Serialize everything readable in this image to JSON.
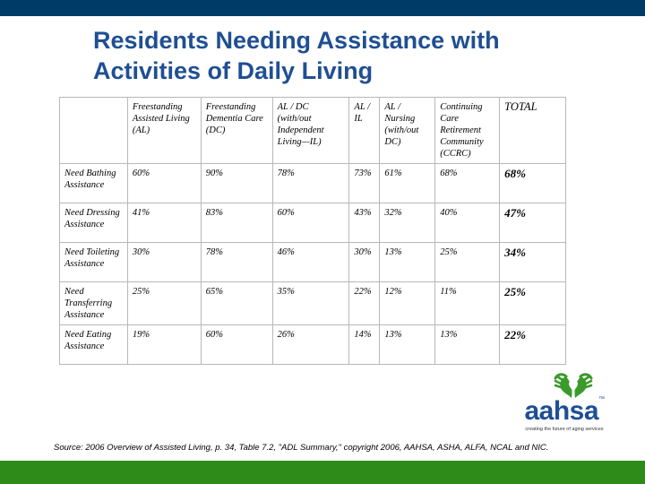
{
  "title": "Residents Needing Assistance with Activities of Daily Living",
  "table": {
    "headers": [
      "",
      "Freestanding Assisted Living (AL)",
      "Freestanding Dementia Care (DC)",
      "AL / DC (with/out Independent Living—IL)",
      "AL / IL",
      "AL / Nursing (with/out DC)",
      "Continuing Care Retirement Community (CCRC)",
      "TOTAL"
    ],
    "rows": [
      {
        "label": "Need Bathing Assistance",
        "cells": [
          "60%",
          "90%",
          "78%",
          "73%",
          "61%",
          "68%",
          "68%"
        ]
      },
      {
        "label": "Need Dressing Assistance",
        "cells": [
          "41%",
          "83%",
          "60%",
          "43%",
          "32%",
          "40%",
          "47%"
        ]
      },
      {
        "label": "Need Toileting Assistance",
        "cells": [
          "30%",
          "78%",
          "46%",
          "30%",
          "13%",
          "25%",
          "34%"
        ]
      },
      {
        "label": "Need Transferring Assistance",
        "cells": [
          "25%",
          "65%",
          "35%",
          "22%",
          "12%",
          "11%",
          "25%"
        ]
      },
      {
        "label": "Need Eating Assistance",
        "cells": [
          "19%",
          "60%",
          "26%",
          "14%",
          "13%",
          "13%",
          "22%"
        ]
      }
    ]
  },
  "logo": {
    "icon": "hands-heart-icon",
    "wordmark": "aahsa",
    "trademark": "™",
    "tagline": "creating the future of aging services"
  },
  "source": "Source: 2006 Overview of Assisted Living, p. 34, Table 7.2, \"ADL Summary,\" copyright 2006, AAHSA, ASHA, ALFA, NCAL and NIC.",
  "colors": {
    "top_bar": "#003a66",
    "title": "#1f4f93",
    "bottom_bar": "#2e8b1a",
    "logo_green": "#3a9a2a",
    "logo_blue": "#1f4f93"
  }
}
